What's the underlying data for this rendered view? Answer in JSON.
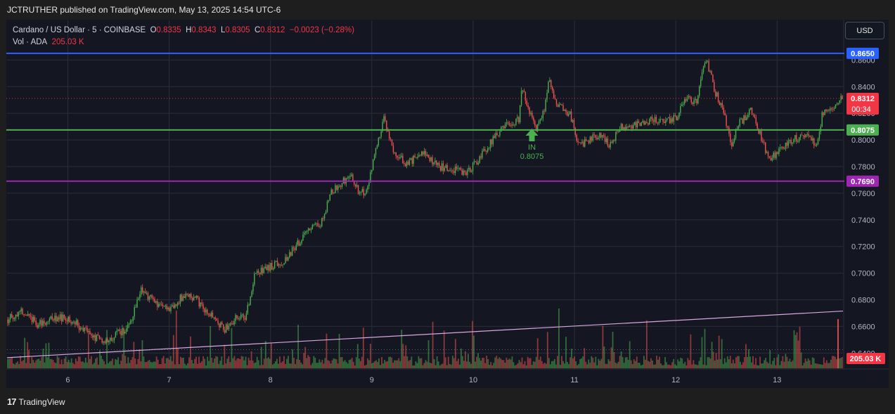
{
  "header": {
    "published": "JCTRUTHER published on TradingView.com, May 13, 2025 14:54 UTC-6"
  },
  "legend": {
    "symbol": "Cardano / US Dollar · 5 · COINBASE",
    "open_label": "O",
    "open": "0.8335",
    "high_label": "H",
    "high": "0.8343",
    "low_label": "L",
    "low": "0.8305",
    "close_label": "C",
    "close": "0.8312",
    "change": "−0.0023 (−0.28%)",
    "vol_label": "Vol · ADA",
    "vol": "205.03 K"
  },
  "currency_button": "USD",
  "footer": {
    "logo": "17",
    "brand": "TradingView"
  },
  "chart_data": {
    "type": "candlestick",
    "timeframe": "5",
    "x_tick_labels": [
      "6",
      "7",
      "8",
      "9",
      "10",
      "11",
      "12",
      "13"
    ],
    "y_tick_labels": [
      "0.8600",
      "0.8400",
      "0.8200",
      "0.8000",
      "0.7800",
      "0.7600",
      "0.7400",
      "0.7200",
      "0.7000",
      "0.6800",
      "0.6600",
      "0.6400"
    ],
    "ylim": [
      0.628,
      0.866
    ],
    "xlim_days": [
      5.4,
      13.65
    ],
    "price_path": [
      [
        5.4,
        0.665
      ],
      [
        5.55,
        0.672
      ],
      [
        5.7,
        0.662
      ],
      [
        5.9,
        0.667
      ],
      [
        6.05,
        0.664
      ],
      [
        6.2,
        0.655
      ],
      [
        6.35,
        0.648
      ],
      [
        6.5,
        0.655
      ],
      [
        6.6,
        0.66
      ],
      [
        6.72,
        0.688
      ],
      [
        6.85,
        0.678
      ],
      [
        7.0,
        0.673
      ],
      [
        7.15,
        0.684
      ],
      [
        7.25,
        0.682
      ],
      [
        7.35,
        0.672
      ],
      [
        7.45,
        0.665
      ],
      [
        7.55,
        0.658
      ],
      [
        7.65,
        0.666
      ],
      [
        7.75,
        0.666
      ],
      [
        7.85,
        0.7
      ],
      [
        8.0,
        0.705
      ],
      [
        8.15,
        0.71
      ],
      [
        8.25,
        0.72
      ],
      [
        8.35,
        0.73
      ],
      [
        8.5,
        0.738
      ],
      [
        8.6,
        0.76
      ],
      [
        8.7,
        0.768
      ],
      [
        8.8,
        0.772
      ],
      [
        8.88,
        0.76
      ],
      [
        8.95,
        0.762
      ],
      [
        9.05,
        0.795
      ],
      [
        9.12,
        0.815
      ],
      [
        9.22,
        0.79
      ],
      [
        9.35,
        0.782
      ],
      [
        9.5,
        0.79
      ],
      [
        9.65,
        0.78
      ],
      [
        9.8,
        0.778
      ],
      [
        9.95,
        0.776
      ],
      [
        10.1,
        0.79
      ],
      [
        10.25,
        0.806
      ],
      [
        10.35,
        0.812
      ],
      [
        10.45,
        0.815
      ],
      [
        10.48,
        0.84
      ],
      [
        10.55,
        0.822
      ],
      [
        10.62,
        0.808
      ],
      [
        10.7,
        0.823
      ],
      [
        10.75,
        0.844
      ],
      [
        10.82,
        0.826
      ],
      [
        10.95,
        0.82
      ],
      [
        11.05,
        0.795
      ],
      [
        11.15,
        0.8
      ],
      [
        11.25,
        0.805
      ],
      [
        11.35,
        0.796
      ],
      [
        11.45,
        0.81
      ],
      [
        11.6,
        0.811
      ],
      [
        11.75,
        0.815
      ],
      [
        11.9,
        0.814
      ],
      [
        12.0,
        0.816
      ],
      [
        12.1,
        0.832
      ],
      [
        12.2,
        0.828
      ],
      [
        12.3,
        0.862
      ],
      [
        12.38,
        0.838
      ],
      [
        12.48,
        0.818
      ],
      [
        12.55,
        0.797
      ],
      [
        12.62,
        0.812
      ],
      [
        12.75,
        0.822
      ],
      [
        12.85,
        0.8
      ],
      [
        12.92,
        0.785
      ],
      [
        13.0,
        0.79
      ],
      [
        13.15,
        0.8
      ],
      [
        13.3,
        0.805
      ],
      [
        13.38,
        0.795
      ],
      [
        13.45,
        0.82
      ],
      [
        13.55,
        0.825
      ],
      [
        13.62,
        0.831
      ]
    ],
    "horizontal_levels": [
      {
        "price": 0.865,
        "label": "0.8650",
        "color": "#2962ff"
      },
      {
        "price": 0.8075,
        "label": "0.8075",
        "color": "#4caf50"
      },
      {
        "price": 0.769,
        "label": "0.7690",
        "color": "#9c27b0"
      }
    ],
    "current_price": {
      "price": 0.8312,
      "label": "0.8312",
      "countdown": "00:34",
      "color": "#f23645"
    },
    "volume": {
      "last_label": "205.03 K",
      "color": "#f23645"
    },
    "trend_line": {
      "from": [
        5.4,
        0.6365
      ],
      "to": [
        13.65,
        0.6715
      ],
      "color": "#d8a6e0"
    },
    "annotation": {
      "text": "IN",
      "value": "0.8075",
      "x": 10.58,
      "price": 0.8085,
      "color": "#4caf50"
    },
    "colors": {
      "up": "#26a69a",
      "up_green": "#4caf50",
      "down": "#ef5350",
      "grid": "#2a2e39",
      "background": "#141722"
    }
  }
}
